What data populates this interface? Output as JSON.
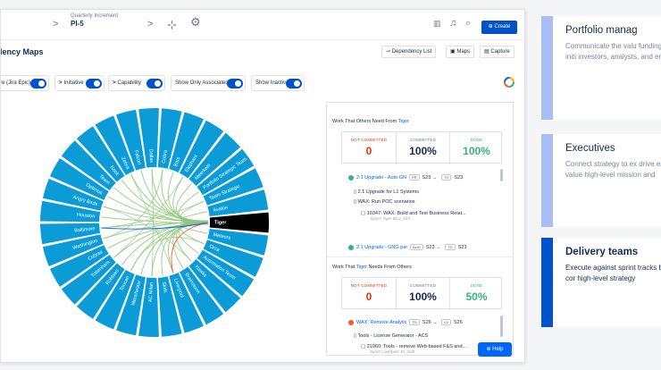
{
  "topbar": {
    "crumb_sub": "Quarterly Increment",
    "crumb_main": "PI-5",
    "create_label": "Create"
  },
  "page": {
    "title": "dency Maps",
    "actions": {
      "dependency_list": "Dependency List",
      "maps": "Maps",
      "capture": "Capture"
    }
  },
  "filters": [
    {
      "label": "re (Jira Epic)",
      "arrow": ""
    },
    {
      "label": "Initiative",
      "arrow": ">"
    },
    {
      "label": "Capability",
      "arrow": ">"
    },
    {
      "label": "Show Only Associated",
      "arrow": ""
    },
    {
      "label": "Show Inactive",
      "arrow": ""
    }
  ],
  "chord": {
    "selected": "Tiger",
    "selected_color": "#000000",
    "ring_color": "#0b9bd7",
    "chord_color": "#8fc67a",
    "labels": [
      "Zebra",
      "Falcon",
      "Dallas",
      "Cobra",
      "Bats",
      "Elephant",
      "Meerkats",
      "Portfolio Strategic Team",
      "Team Strategic",
      "Avalon",
      "Tiger",
      "Meteors",
      "Orca",
      "Automation Team",
      "Hawks",
      "Brainstorm",
      "Liverpool",
      "Sloth",
      "AC Milan",
      "Manchester",
      "Toucan",
      "Robbies",
      "Tottenham",
      "Cobras",
      "Washington",
      "Baltimore",
      "Houston",
      "Angry Birds",
      "Optimus",
      "Team",
      "Rock"
    ]
  },
  "panel": {
    "top": {
      "title_prefix": "Work That Others Need From",
      "team": "Tiger",
      "not_committed_label": "NOT COMMITTED",
      "not_committed": "0",
      "committed_label": "COMMITTED",
      "committed": "100%",
      "done_label": "DONE",
      "done": "100%",
      "items": [
        {
          "id": "top-1",
          "text": "2.1 Upgrade - Auto GN",
          "tag1": "PR",
          "from": "S23",
          "tag2": "TG",
          "to": "S23",
          "dot": "#36b37e"
        },
        {
          "id": "top-2",
          "text": "2.1 Upgrade for L1 Systems"
        },
        {
          "id": "top-3",
          "text": "WAX: Run POC scenarios"
        },
        {
          "id": "top-4",
          "text": "10347: WAX: Build and Test Business Relat...",
          "sub": "Sprint: Tiger BLU_S15"
        },
        {
          "id": "top-5",
          "text": "2.1 Upgrade - GNG par",
          "tag1": "BUG",
          "from": "S23",
          "tag2": "TG",
          "to": "S23",
          "dot": "#36b37e"
        }
      ]
    },
    "bottom": {
      "title_prefix": "Work That",
      "team": "Tiger",
      "title_suffix": "Needs From Others",
      "not_committed_label": "NOT COMMITTED",
      "not_committed": "0",
      "committed_label": "COMMITTED",
      "committed": "100%",
      "done_label": "DONE",
      "done": "50%",
      "items": [
        {
          "id": "bot-1",
          "text": "WAX: Remove Analytic",
          "tag1": "TG",
          "from": "S26",
          "tag2": "LV",
          "to": "S26",
          "dot": "#ff5630"
        },
        {
          "id": "bot-2",
          "text": "Tools - License Generator - ACS"
        },
        {
          "id": "bot-3",
          "text": "21060: Tools - remove Web-based F&S and...",
          "sub": "Sprint: Liverpool JG_S28"
        }
      ]
    },
    "help_label": "Help"
  },
  "cards": [
    {
      "title": "Portfolio manag",
      "text": "Communicate the valu funding strategic initi investors, analysts, and employees"
    },
    {
      "title": "Executives",
      "text": "Connect strategy to ex drive enterprise value high-level mission and"
    },
    {
      "title": "Delivery teams",
      "text": "Execute against sprint tracks back to your cor high-level strategy"
    }
  ]
}
